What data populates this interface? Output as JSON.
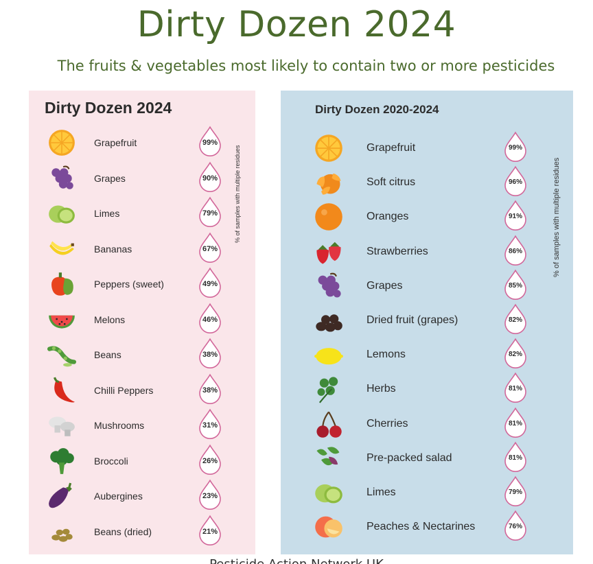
{
  "title": "Dirty Dozen 2024",
  "subtitle": "The fruits & vegetables most likely to contain two or more pesticides",
  "footer": "Pesticide Action Network UK",
  "colors": {
    "title": "#4a6a2c",
    "left_panel": "#fae6ea",
    "right_panel": "#c8dde9",
    "drop_outline": "#d2679a"
  },
  "left_panel": {
    "title": "Dirty Dozen 2024",
    "axis_note": "% of samples with multiple residues",
    "items": [
      {
        "label": "Grapefruit",
        "pct": "99%",
        "icon": "grapefruit-icon"
      },
      {
        "label": "Grapes",
        "pct": "90%",
        "icon": "grapes-icon"
      },
      {
        "label": "Limes",
        "pct": "79%",
        "icon": "limes-icon"
      },
      {
        "label": "Bananas",
        "pct": "67%",
        "icon": "bananas-icon"
      },
      {
        "label": "Peppers (sweet)",
        "pct": "49%",
        "icon": "peppers-icon"
      },
      {
        "label": "Melons",
        "pct": "46%",
        "icon": "melon-icon"
      },
      {
        "label": "Beans",
        "pct": "38%",
        "icon": "beans-icon"
      },
      {
        "label": "Chilli Peppers",
        "pct": "38%",
        "icon": "chilli-icon"
      },
      {
        "label": "Mushrooms",
        "pct": "31%",
        "icon": "mushrooms-icon"
      },
      {
        "label": "Broccoli",
        "pct": "26%",
        "icon": "broccoli-icon"
      },
      {
        "label": "Aubergines",
        "pct": "23%",
        "icon": "aubergine-icon"
      },
      {
        "label": "Beans (dried)",
        "pct": "21%",
        "icon": "dried-beans-icon"
      }
    ]
  },
  "right_panel": {
    "title": "Dirty Dozen 2020-2024",
    "axis_note": "% of samples with multiple residues",
    "items": [
      {
        "label": "Grapefruit",
        "pct": "99%",
        "icon": "grapefruit-icon"
      },
      {
        "label": "Soft citrus",
        "pct": "96%",
        "icon": "soft-citrus-icon"
      },
      {
        "label": "Oranges",
        "pct": "91%",
        "icon": "orange-icon"
      },
      {
        "label": "Strawberries",
        "pct": "86%",
        "icon": "strawberries-icon"
      },
      {
        "label": "Grapes",
        "pct": "85%",
        "icon": "grapes-icon"
      },
      {
        "label": "Dried fruit (grapes)",
        "pct": "82%",
        "icon": "dried-fruit-icon"
      },
      {
        "label": "Lemons",
        "pct": "82%",
        "icon": "lemon-icon"
      },
      {
        "label": "Herbs",
        "pct": "81%",
        "icon": "herbs-icon"
      },
      {
        "label": "Cherries",
        "pct": "81%",
        "icon": "cherries-icon"
      },
      {
        "label": "Pre-packed salad",
        "pct": "81%",
        "icon": "salad-icon"
      },
      {
        "label": "Limes",
        "pct": "79%",
        "icon": "limes-icon"
      },
      {
        "label": "Peaches & Nectarines",
        "pct": "76%",
        "icon": "peach-icon"
      }
    ]
  }
}
